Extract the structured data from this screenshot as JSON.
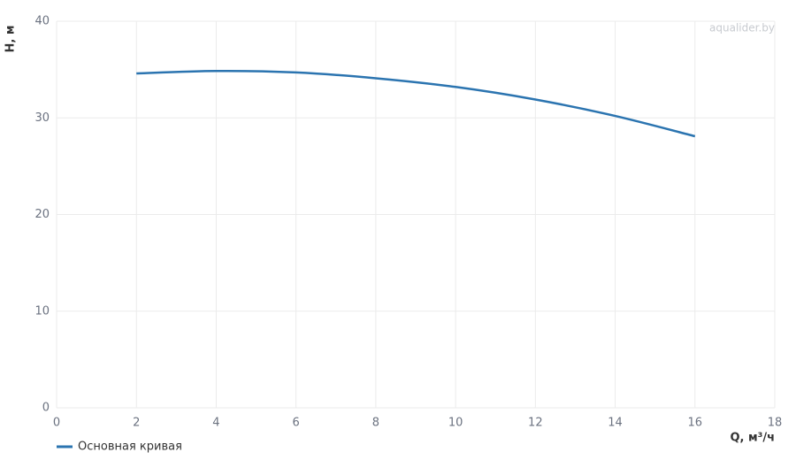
{
  "chart_data": {
    "type": "line",
    "x_label": "Q, м³/ч",
    "y_label": "H, м",
    "watermark": "aqualider.by",
    "x": [
      2,
      4,
      6,
      8,
      10,
      12,
      14,
      16
    ],
    "series": [
      {
        "name": "Основная кривая",
        "color": "#2b74b0",
        "values": [
          34.6,
          34.85,
          34.7,
          34.1,
          33.2,
          31.9,
          30.2,
          28.1
        ]
      }
    ],
    "xlim": [
      0,
      18
    ],
    "xticks": [
      0,
      2,
      4,
      6,
      8,
      10,
      12,
      14,
      16,
      18
    ],
    "ylim": [
      0,
      40
    ],
    "yticks": [
      0,
      10,
      20,
      30,
      40
    ],
    "grid": true
  }
}
